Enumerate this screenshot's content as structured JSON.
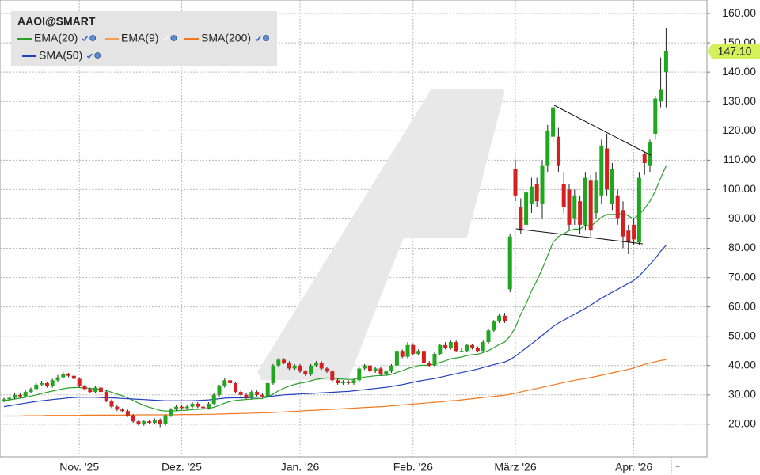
{
  "chart_data": {
    "type": "candlestick",
    "title": "AAOI@SMART",
    "categories": [
      null,
      null,
      null,
      null,
      null,
      null,
      null,
      null,
      null,
      null,
      null,
      null,
      null,
      null,
      "Nov. '25",
      null,
      null,
      null,
      null,
      null,
      null,
      null,
      null,
      null,
      null,
      null,
      null,
      null,
      null,
      null,
      null,
      null,
      null,
      "Dez. '25",
      null,
      null,
      null,
      null,
      null,
      null,
      null,
      null,
      null,
      null,
      null,
      null,
      null,
      null,
      null,
      null,
      null,
      null,
      null,
      null,
      null,
      "Jan. '26",
      null,
      null,
      null,
      null,
      null,
      null,
      null,
      null,
      null,
      null,
      null,
      null,
      null,
      null,
      null,
      null,
      null,
      null,
      null,
      null,
      "Feb. '26",
      null,
      null,
      null,
      null,
      null,
      null,
      null,
      null,
      null,
      null,
      null,
      null,
      null,
      null,
      null,
      null,
      null,
      null,
      "März '26",
      null,
      null,
      null,
      null,
      null,
      null,
      null,
      null,
      null,
      null,
      null,
      null,
      null,
      null,
      null,
      null,
      null,
      null,
      null,
      null,
      null,
      "Apr. '26",
      null,
      null,
      null,
      null,
      null,
      null
    ],
    "ohlc": [
      [
        28,
        29,
        27.5,
        28.5
      ],
      [
        28.5,
        29.5,
        28,
        29
      ],
      [
        29,
        30.8,
        28.5,
        30
      ],
      [
        30,
        30.5,
        29,
        29.5
      ],
      [
        29.5,
        31.5,
        29,
        31
      ],
      [
        31,
        32.5,
        30.5,
        32
      ],
      [
        32,
        34,
        31.5,
        33.5
      ],
      [
        33.5,
        34.8,
        33,
        34
      ],
      [
        34,
        34.5,
        32.5,
        33
      ],
      [
        33,
        35.5,
        32.5,
        35
      ],
      [
        35,
        36.8,
        34.5,
        36
      ],
      [
        36,
        37.8,
        35.5,
        37
      ],
      [
        37,
        37.5,
        36,
        36.5
      ],
      [
        36.5,
        37,
        35,
        35.5
      ],
      [
        35.5,
        36,
        32.5,
        33
      ],
      [
        33,
        33.5,
        31.5,
        32
      ],
      [
        32,
        32.5,
        30.5,
        31
      ],
      [
        31,
        33,
        30.5,
        32.5
      ],
      [
        32.5,
        33,
        30.5,
        31
      ],
      [
        31,
        31.5,
        27.5,
        28
      ],
      [
        28,
        28.5,
        25.5,
        26
      ],
      [
        26,
        26.5,
        24.5,
        25
      ],
      [
        25,
        25.5,
        24,
        24.5
      ],
      [
        24.5,
        25,
        22.5,
        23
      ],
      [
        23,
        23.5,
        20.5,
        21
      ],
      [
        21,
        21.5,
        19.5,
        20
      ],
      [
        20,
        21.5,
        19.5,
        21
      ],
      [
        21,
        21.5,
        20,
        20.5
      ],
      [
        20.5,
        22,
        20,
        21.5
      ],
      [
        21.5,
        22,
        19,
        20
      ],
      [
        20,
        23.5,
        19.5,
        23
      ],
      [
        23,
        25.5,
        22.5,
        25
      ],
      [
        25,
        26.5,
        24.5,
        26
      ],
      [
        26,
        26.5,
        25,
        25.5
      ],
      [
        25.5,
        26.5,
        25,
        26
      ],
      [
        26,
        27.5,
        25.5,
        27
      ],
      [
        27,
        27.5,
        25.5,
        26
      ],
      [
        26,
        26.5,
        25,
        25.5
      ],
      [
        25.5,
        27.5,
        25,
        27
      ],
      [
        27,
        30.5,
        26.5,
        30
      ],
      [
        30,
        33.5,
        29.5,
        33
      ],
      [
        33,
        35.8,
        32.5,
        35
      ],
      [
        35,
        35.5,
        33.5,
        34
      ],
      [
        34,
        34.5,
        30.5,
        31
      ],
      [
        31,
        31.5,
        29.5,
        30
      ],
      [
        30,
        30.5,
        28.5,
        29
      ],
      [
        29,
        31.5,
        28.5,
        31
      ],
      [
        31,
        31.5,
        29.5,
        30
      ],
      [
        30,
        30.5,
        29,
        29.5
      ],
      [
        29.5,
        34.5,
        29,
        34
      ],
      [
        34,
        40.5,
        33.5,
        40
      ],
      [
        40,
        42.5,
        39.5,
        42
      ],
      [
        42,
        42.5,
        40.5,
        41
      ],
      [
        41,
        41.5,
        38.5,
        39
      ],
      [
        39,
        40.5,
        38.5,
        40
      ],
      [
        40,
        40.5,
        37.5,
        38
      ],
      [
        38,
        38.5,
        36.5,
        37
      ],
      [
        37,
        40.5,
        36.5,
        40
      ],
      [
        40,
        41.5,
        39.5,
        41
      ],
      [
        41,
        41.5,
        38.5,
        39
      ],
      [
        39,
        39.5,
        37.5,
        38
      ],
      [
        38,
        38.5,
        34.5,
        35
      ],
      [
        35,
        35.5,
        33.5,
        34
      ],
      [
        34,
        35,
        33.5,
        34.5
      ],
      [
        34.5,
        35,
        33.5,
        34
      ],
      [
        34,
        35.5,
        33.5,
        35
      ],
      [
        35,
        39.5,
        34.5,
        39
      ],
      [
        39,
        40.5,
        38.5,
        40
      ],
      [
        40,
        40.5,
        37.5,
        38
      ],
      [
        38,
        39.5,
        37.5,
        39
      ],
      [
        39,
        39.5,
        36.5,
        37
      ],
      [
        37,
        38.5,
        36.5,
        38
      ],
      [
        38,
        40.5,
        37.5,
        40
      ],
      [
        40,
        45.5,
        39.5,
        45
      ],
      [
        45,
        45.5,
        42.5,
        43
      ],
      [
        43,
        48,
        42.5,
        47
      ],
      [
        47,
        47.5,
        43.5,
        44
      ],
      [
        44,
        45.5,
        43.5,
        45
      ],
      [
        45,
        45.5,
        40.5,
        41
      ],
      [
        41,
        41.5,
        39.5,
        40
      ],
      [
        40,
        44.5,
        39.5,
        44
      ],
      [
        44,
        47.5,
        43.5,
        47
      ],
      [
        47,
        48,
        45.5,
        46
      ],
      [
        46,
        48.5,
        45.5,
        48
      ],
      [
        48,
        48.5,
        44.5,
        45
      ],
      [
        45,
        46,
        44.5,
        45
      ],
      [
        45,
        47.5,
        44.5,
        47
      ],
      [
        47,
        47.5,
        45.5,
        46
      ],
      [
        46,
        46.5,
        44.5,
        45
      ],
      [
        45,
        48.5,
        44.5,
        48
      ],
      [
        48,
        52.5,
        47.5,
        52
      ],
      [
        52,
        55.5,
        51.5,
        55
      ],
      [
        55,
        57.5,
        54.5,
        57
      ],
      [
        57,
        58,
        54.5,
        55
      ],
      [
        66,
        85,
        65,
        84
      ],
      [
        107,
        110,
        96,
        98
      ],
      [
        94,
        97,
        85,
        86
      ],
      [
        88,
        100,
        87,
        99
      ],
      [
        95,
        104,
        92,
        101
      ],
      [
        102,
        104,
        94,
        96
      ],
      [
        95,
        110,
        90,
        108
      ],
      [
        108,
        122,
        106,
        120
      ],
      [
        118,
        129,
        116,
        128
      ],
      [
        118,
        121,
        106,
        108
      ],
      [
        102,
        106,
        92,
        94
      ],
      [
        100,
        102,
        86,
        88
      ],
      [
        90,
        100,
        88,
        98
      ],
      [
        96,
        98,
        85,
        88
      ],
      [
        88,
        106,
        86,
        104
      ],
      [
        103,
        105,
        84,
        86
      ],
      [
        92,
        106,
        90,
        103
      ],
      [
        98,
        117,
        95,
        115
      ],
      [
        114,
        119,
        98,
        100
      ],
      [
        95,
        109,
        93,
        107
      ],
      [
        98,
        100,
        88,
        90
      ],
      [
        93,
        96,
        80,
        84
      ],
      [
        86,
        88,
        78,
        82
      ],
      [
        88,
        90,
        81,
        83
      ],
      [
        82,
        106,
        81,
        104
      ],
      [
        112,
        113,
        105,
        109
      ],
      [
        108,
        117,
        106,
        116
      ],
      [
        119,
        132,
        117,
        131
      ],
      [
        130,
        145,
        128,
        134
      ],
      [
        140,
        155,
        128,
        147.1
      ]
    ],
    "up_color": "#1fa81f",
    "down_color": "#d42020",
    "series": [
      {
        "name": "EMA(20)",
        "color": "#2aa02a",
        "values": [
          28,
          28.3,
          28.6,
          28.9,
          29.2,
          29.6,
          30,
          30.5,
          30.9,
          31.3,
          31.7,
          32.1,
          32.4,
          32.5,
          32.5,
          32.4,
          32.2,
          32.1,
          31.9,
          31.5,
          30.9,
          30.3,
          29.7,
          29,
          28.1,
          27.2,
          26.5,
          25.8,
          25.3,
          24.7,
          24.5,
          24.5,
          24.6,
          24.7,
          24.8,
          25,
          25.1,
          25.2,
          25.4,
          25.8,
          26.4,
          27.2,
          27.8,
          28.1,
          28.3,
          28.4,
          28.6,
          28.7,
          28.8,
          29.3,
          30.3,
          31.4,
          32.3,
          33,
          33.6,
          34,
          34.3,
          34.8,
          35.3,
          35.6,
          35.8,
          35.7,
          35.5,
          35.4,
          35.3,
          35.3,
          35.7,
          36.1,
          36.3,
          36.5,
          36.6,
          36.7,
          37,
          37.7,
          38.2,
          39,
          39.5,
          40,
          40.1,
          40.1,
          40.5,
          41.1,
          41.6,
          42.3,
          42.6,
          42.9,
          43.4,
          43.7,
          43.9,
          44.4,
          45.1,
          46.1,
          47.2,
          48,
          50,
          53,
          57.5,
          61,
          65.5,
          69,
          73,
          77.5,
          82,
          84,
          85,
          86,
          86.5,
          86.5,
          88,
          87.5,
          89,
          90.5,
          91.5,
          91.5,
          91.5,
          92,
          91,
          90,
          91.5,
          93.5,
          96,
          99.5,
          104,
          108
        ]
      },
      {
        "name": "EMA(9)",
        "color": "#f0a050",
        "visible": false
      },
      {
        "name": "SMA(200)",
        "color": "#f07820",
        "values": [
          22.8,
          22.8,
          22.8,
          22.8,
          22.9,
          22.9,
          22.9,
          22.9,
          23,
          23,
          23,
          23,
          23,
          23,
          23,
          23.1,
          23.1,
          23.1,
          23.1,
          23.1,
          23.1,
          23.1,
          23.1,
          23.1,
          23.1,
          23.2,
          23.2,
          23.2,
          23.2,
          23.2,
          23.2,
          23.2,
          23.2,
          23.3,
          23.3,
          23.3,
          23.3,
          23.4,
          23.4,
          23.4,
          23.5,
          23.5,
          23.6,
          23.6,
          23.7,
          23.7,
          23.8,
          23.8,
          23.9,
          23.9,
          24,
          24.1,
          24.2,
          24.3,
          24.4,
          24.5,
          24.6,
          24.7,
          24.8,
          24.9,
          25,
          25.1,
          25.2,
          25.3,
          25.4,
          25.5,
          25.6,
          25.7,
          25.8,
          25.9,
          26,
          26.1,
          26.3,
          26.4,
          26.6,
          26.7,
          26.9,
          27,
          27.2,
          27.3,
          27.5,
          27.6,
          27.8,
          28,
          28.1,
          28.3,
          28.5,
          28.7,
          28.9,
          29.1,
          29.3,
          29.5,
          29.7,
          29.9,
          30.2,
          30.6,
          31,
          31.4,
          31.8,
          32.2,
          32.6,
          33,
          33.4,
          33.8,
          34.2,
          34.6,
          35,
          35.3,
          35.6,
          35.9,
          36.3,
          36.7,
          37.1,
          37.5,
          37.9,
          38.3,
          38.7,
          39.2,
          39.8,
          40.4,
          40.9,
          41.3,
          41.7,
          42
        ]
      },
      {
        "name": "SMA(50)",
        "color": "#2040c0",
        "values": [
          26,
          26.3,
          26.6,
          26.9,
          27.2,
          27.5,
          27.8,
          28,
          28.2,
          28.4,
          28.6,
          28.8,
          29,
          29.1,
          29.2,
          29.2,
          29.2,
          29.2,
          29.1,
          29,
          29,
          28.9,
          28.8,
          28.7,
          28.6,
          28.5,
          28.4,
          28.3,
          28.2,
          28.1,
          28,
          28,
          28,
          28,
          28,
          28,
          28.1,
          28.2,
          28.3,
          28.5,
          28.7,
          28.9,
          29,
          29,
          29,
          29,
          29.1,
          29.2,
          29.3,
          29.4,
          29.6,
          29.8,
          30,
          30.1,
          30.2,
          30.3,
          30.4,
          30.5,
          30.6,
          30.7,
          30.8,
          30.9,
          31,
          31.1,
          31.2,
          31.4,
          31.6,
          31.8,
          32,
          32.2,
          32.4,
          32.6,
          32.9,
          33.2,
          33.5,
          33.9,
          34.3,
          34.7,
          35,
          35.3,
          35.6,
          36,
          36.4,
          36.8,
          37.2,
          37.6,
          38,
          38.4,
          38.8,
          39.3,
          39.8,
          40.3,
          40.8,
          41.2,
          42,
          43.2,
          44.6,
          46,
          47.4,
          48.8,
          50.3,
          51.8,
          53.3,
          54.5,
          55.5,
          56.5,
          57.5,
          58.5,
          59.5,
          60.6,
          61.8,
          63,
          64,
          65,
          66,
          67,
          68,
          69,
          70.5,
          72.5,
          74.5,
          76.5,
          79,
          81
        ]
      }
    ],
    "last_price": {
      "value": 147.1,
      "label": "147.10"
    },
    "last_price_color": "#d4f05a",
    "ylim": [
      8.9,
      164.6
    ],
    "yticks": [
      {
        "value": 20,
        "label": "20.00"
      },
      {
        "value": 30,
        "label": "30.00"
      },
      {
        "value": 40,
        "label": "40.00"
      },
      {
        "value": 50,
        "label": "50.00"
      },
      {
        "value": 60,
        "label": "60.00"
      },
      {
        "value": 70,
        "label": "70.00"
      },
      {
        "value": 80,
        "label": "80.00"
      },
      {
        "value": 90,
        "label": "90.00"
      },
      {
        "value": 100,
        "label": "100.00"
      },
      {
        "value": 110,
        "label": "110.00"
      },
      {
        "value": 120,
        "label": "120.00"
      },
      {
        "value": 130,
        "label": "130.00"
      },
      {
        "value": 140,
        "label": "140.00"
      },
      {
        "value": 150,
        "label": "150.00"
      },
      {
        "value": 160,
        "label": "160.00"
      }
    ],
    "grid": true
  }
}
